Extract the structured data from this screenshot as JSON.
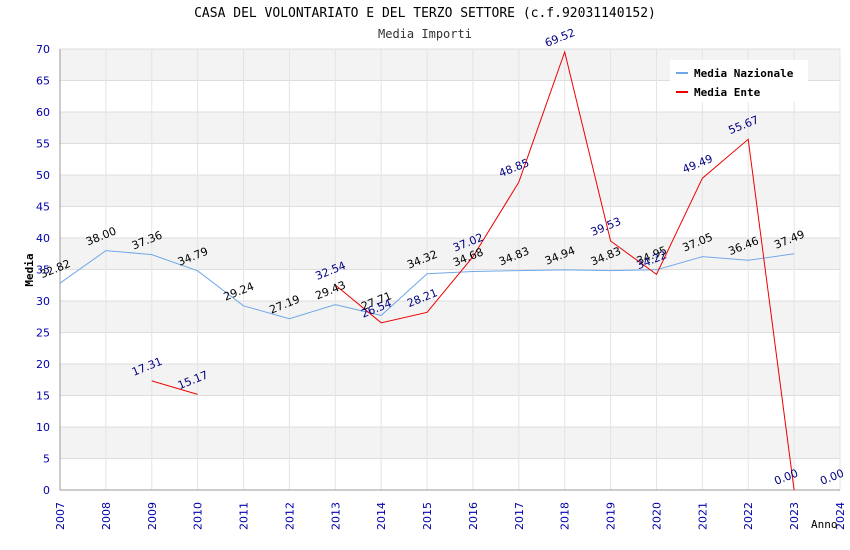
{
  "chart_data": {
    "type": "line",
    "title": "CASA DEL VOLONTARIATO E DEL TERZO SETTORE (c.f.92031140152)",
    "subtitle": "Media Importi",
    "xlabel": "Anno",
    "ylabel": "Media",
    "xlim": [
      2007,
      2024
    ],
    "ylim": [
      0,
      70
    ],
    "x_ticks": [
      "2007",
      "2008",
      "2009",
      "2010",
      "2011",
      "2012",
      "2013",
      "2014",
      "2015",
      "2016",
      "2017",
      "2018",
      "2019",
      "2020",
      "2021",
      "2022",
      "2023",
      "2024"
    ],
    "y_ticks": [
      "0",
      "5",
      "10",
      "15",
      "20",
      "25",
      "30",
      "35",
      "40",
      "45",
      "50",
      "55",
      "60",
      "65",
      "70"
    ],
    "grid": true,
    "legend_position": "top-right",
    "series": [
      {
        "name": "Media Nazionale",
        "color": "#6fa8e8",
        "label_color": "#000000",
        "points": [
          {
            "x": 2007,
            "y": 32.82,
            "label": "32.82"
          },
          {
            "x": 2008,
            "y": 38.0,
            "label": "38.00"
          },
          {
            "x": 2009,
            "y": 37.36,
            "label": "37.36"
          },
          {
            "x": 2010,
            "y": 34.79,
            "label": "34.79"
          },
          {
            "x": 2011,
            "y": 29.24,
            "label": "29.24"
          },
          {
            "x": 2012,
            "y": 27.19,
            "label": "27.19"
          },
          {
            "x": 2013,
            "y": 29.43,
            "label": "29.43"
          },
          {
            "x": 2014,
            "y": 27.71,
            "label": "27.71"
          },
          {
            "x": 2015,
            "y": 34.32,
            "label": "34.32"
          },
          {
            "x": 2016,
            "y": 34.68,
            "label": "34.68"
          },
          {
            "x": 2017,
            "y": 34.83,
            "label": "34.83"
          },
          {
            "x": 2018,
            "y": 34.94,
            "label": "34.94"
          },
          {
            "x": 2019,
            "y": 34.83,
            "label": "34.83"
          },
          {
            "x": 2020,
            "y": 34.95,
            "label": "34.95"
          },
          {
            "x": 2021,
            "y": 37.05,
            "label": "37.05"
          },
          {
            "x": 2022,
            "y": 36.46,
            "label": "36.46"
          },
          {
            "x": 2023,
            "y": 37.49,
            "label": "37.49"
          }
        ]
      },
      {
        "name": "Media Ente",
        "color": "#ee0000",
        "label_color": "#000080",
        "points": [
          {
            "x": 2009,
            "y": 17.31,
            "label": "17.31"
          },
          {
            "x": 2010,
            "y": 15.17,
            "label": "15.17"
          },
          {
            "x": 2011,
            "y": null
          },
          {
            "x": 2012,
            "y": null
          },
          {
            "x": 2013,
            "y": 32.54,
            "label": "32.54"
          },
          {
            "x": 2014,
            "y": 26.54,
            "label": "26.54"
          },
          {
            "x": 2015,
            "y": 28.21,
            "label": "28.21"
          },
          {
            "x": 2016,
            "y": 37.02,
            "label": "37.02"
          },
          {
            "x": 2017,
            "y": 48.85,
            "label": "48.85"
          },
          {
            "x": 2018,
            "y": 69.52,
            "label": "69.52"
          },
          {
            "x": 2019,
            "y": 39.53,
            "label": "39.53"
          },
          {
            "x": 2020,
            "y": 34.22,
            "label": "34.22"
          },
          {
            "x": 2021,
            "y": 49.49,
            "label": "49.49"
          },
          {
            "x": 2022,
            "y": 55.67,
            "label": "55.67"
          },
          {
            "x": 2023,
            "y": 0.0,
            "label": "0.00"
          },
          {
            "x": 2024,
            "y": 0.0,
            "label": "0.00",
            "no_line": true
          }
        ]
      }
    ]
  }
}
